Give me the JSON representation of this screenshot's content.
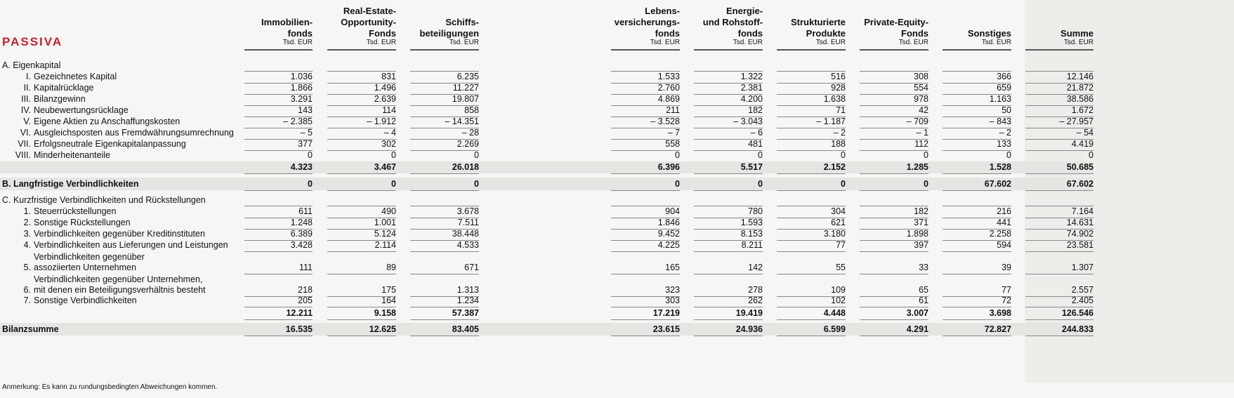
{
  "title": "PASSIVA",
  "columns": [
    {
      "label": "Immobilien-\nfonds",
      "unit": "Tsd. EUR"
    },
    {
      "label": "Real-Estate-\nOpportunity-\nFonds",
      "unit": "Tsd. EUR"
    },
    {
      "label": "Schiffs-\nbeteiligungen",
      "unit": "Tsd. EUR"
    },
    {
      "label": "Lebens-\nversicherungs-\nfonds",
      "unit": "Tsd. EUR"
    },
    {
      "label": "Energie-\nund Rohstoff-\nfonds",
      "unit": "Tsd. EUR"
    },
    {
      "label": "Strukturierte\nProdukte",
      "unit": "Tsd. EUR"
    },
    {
      "label": "Private-Equity-\nFonds",
      "unit": "Tsd. EUR"
    },
    {
      "label": "Sonstiges",
      "unit": "Tsd. EUR"
    },
    {
      "label": "Summe",
      "unit": "Tsd. EUR"
    }
  ],
  "section_a": "A. Eigenkapital",
  "rows_a": [
    {
      "num": "I.",
      "label": "Gezeichnetes Kapital",
      "values": [
        "1.036",
        "831",
        "6.235",
        "1.533",
        "1.322",
        "516",
        "308",
        "366",
        "12.146"
      ]
    },
    {
      "num": "II.",
      "label": "Kapitalrücklage",
      "values": [
        "1.866",
        "1.496",
        "11.227",
        "2.760",
        "2.381",
        "928",
        "554",
        "659",
        "21.872"
      ]
    },
    {
      "num": "III.",
      "label": "Bilanzgewinn",
      "values": [
        "3.291",
        "2.639",
        "19.807",
        "4.869",
        "4.200",
        "1.638",
        "978",
        "1.163",
        "38.586"
      ]
    },
    {
      "num": "IV.",
      "label": "Neubewertungsrücklage",
      "values": [
        "143",
        "114",
        "858",
        "211",
        "182",
        "71",
        "42",
        "50",
        "1.672"
      ]
    },
    {
      "num": "V.",
      "label": "Eigene Aktien zu Anschaffungskosten",
      "values": [
        "– 2.385",
        "– 1.912",
        "– 14.351",
        "– 3.528",
        "– 3.043",
        "– 1.187",
        "– 709",
        "– 843",
        "– 27.957"
      ]
    },
    {
      "num": "VI.",
      "label": "Ausgleichsposten aus Fremdwährungsumrechnung",
      "values": [
        "– 5",
        "– 4",
        "– 28",
        "– 7",
        "– 6",
        "– 2",
        "– 1",
        "– 2",
        "– 54"
      ]
    },
    {
      "num": "VII.",
      "label": "Erfolgsneutrale Eigenkapitalanpassung",
      "values": [
        "377",
        "302",
        "2.269",
        "558",
        "481",
        "188",
        "112",
        "133",
        "4.419"
      ]
    },
    {
      "num": "VIII.",
      "label": "Minderheitenanteile",
      "values": [
        "0",
        "0",
        "0",
        "0",
        "0",
        "0",
        "0",
        "0",
        "0"
      ]
    }
  ],
  "subtotal_a": [
    "4.323",
    "3.467",
    "26.018",
    "6.396",
    "5.517",
    "2.152",
    "1.285",
    "1.528",
    "50.685"
  ],
  "section_b": {
    "label": "B. Langfristige Verbindlichkeiten",
    "values": [
      "0",
      "0",
      "0",
      "0",
      "0",
      "0",
      "0",
      "67.602",
      "67.602"
    ]
  },
  "section_c": "C. Kurzfristige Verbindlichkeiten und Rückstellungen",
  "rows_c": [
    {
      "num": "1.",
      "label": "Steuerrückstellungen",
      "values": [
        "611",
        "490",
        "3.678",
        "904",
        "780",
        "304",
        "182",
        "216",
        "7.164"
      ]
    },
    {
      "num": "2.",
      "label": "Sonstige Rückstellungen",
      "values": [
        "1.248",
        "1.001",
        "7.511",
        "1.846",
        "1.593",
        "621",
        "371",
        "441",
        "14.631"
      ]
    },
    {
      "num": "3.",
      "label": "Verbindlichkeiten gegenüber Kreditinstituten",
      "values": [
        "6.389",
        "5.124",
        "38.448",
        "9.452",
        "8.153",
        "3.180",
        "1.898",
        "2.258",
        "74.902"
      ]
    },
    {
      "num": "4.",
      "label": "Verbindlichkeiten aus Lieferungen und Leistungen",
      "values": [
        "3.428",
        "2.114",
        "4.533",
        "4.225",
        "8.211",
        "77",
        "397",
        "594",
        "23.581"
      ]
    },
    {
      "num": "5.",
      "label": "Verbindlichkeiten gegenüber\nassoziierten Unternehmen",
      "values": [
        "111",
        "89",
        "671",
        "165",
        "142",
        "55",
        "33",
        "39",
        "1.307"
      ]
    },
    {
      "num": "6.",
      "label": "Verbindlichkeiten gegenüber Unternehmen,\nmit denen ein Beteiligungsverhältnis besteht",
      "values": [
        "218",
        "175",
        "1.313",
        "323",
        "278",
        "109",
        "65",
        "77",
        "2.557"
      ]
    },
    {
      "num": "7.",
      "label": "Sonstige Verbindlichkeiten",
      "values": [
        "205",
        "164",
        "1.234",
        "303",
        "262",
        "102",
        "61",
        "72",
        "2.405"
      ]
    }
  ],
  "subtotal_c": [
    "12.211",
    "9.158",
    "57.387",
    "17.219",
    "19.419",
    "4.448",
    "3.007",
    "3.698",
    "126.546"
  ],
  "total": {
    "label": "Bilanzsumme",
    "values": [
      "16.535",
      "12.625",
      "83.405",
      "23.615",
      "24.936",
      "6.599",
      "4.291",
      "72.827",
      "244.833"
    ]
  },
  "note": "Anmerkung: Es kann zu rundungsbedingten Abweichungen kommen."
}
